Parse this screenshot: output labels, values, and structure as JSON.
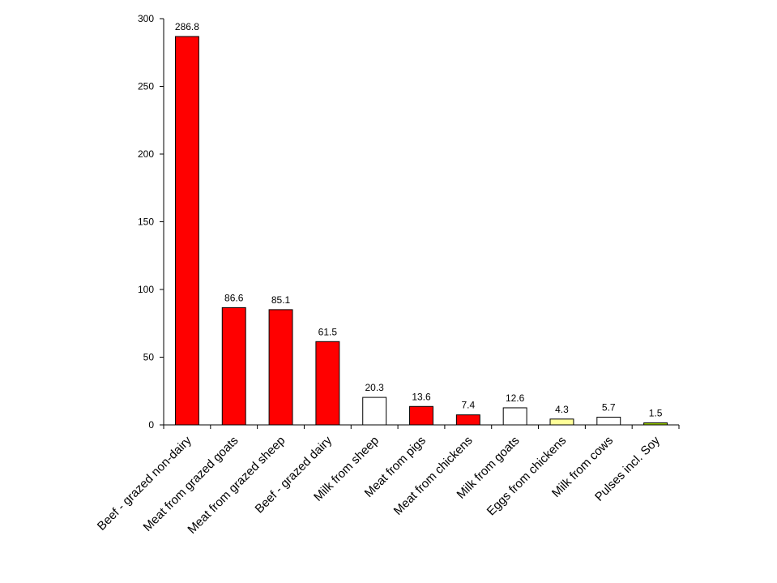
{
  "chart_data": {
    "type": "bar",
    "title": "",
    "xlabel": "",
    "ylabel": "",
    "ylim": [
      0,
      300
    ],
    "yticks": [
      0,
      50,
      100,
      150,
      200,
      250,
      300
    ],
    "grid": false,
    "legend": "none",
    "categories": [
      "Beef - grazed non-dairy",
      "Meat from grazed goats",
      "Meat from grazed sheep",
      "Beef - grazed dairy",
      "Milk from sheep",
      "Meat from pigs",
      "Meat from chickens",
      "Milk from goats",
      "Eggs from chickens",
      "Milk from cows",
      "Pulses incl. Soy"
    ],
    "values": [
      286.8,
      86.6,
      85.1,
      61.5,
      20.3,
      13.6,
      7.4,
      12.6,
      4.3,
      5.7,
      1.5
    ],
    "data_labels": [
      "286.8",
      "86.6",
      "85.1",
      "61.5",
      "20.3",
      "13.6",
      "7.4",
      "12.6",
      "4.3",
      "5.7",
      "1.5"
    ],
    "bar_colors": [
      "#ff0000",
      "#ff0000",
      "#ff0000",
      "#ff0000",
      "#ffffff",
      "#ff0000",
      "#ff0000",
      "#ffffff",
      "#ffff99",
      "#ffffff",
      "#99cc00"
    ],
    "bar_outline_color": "#000000"
  }
}
